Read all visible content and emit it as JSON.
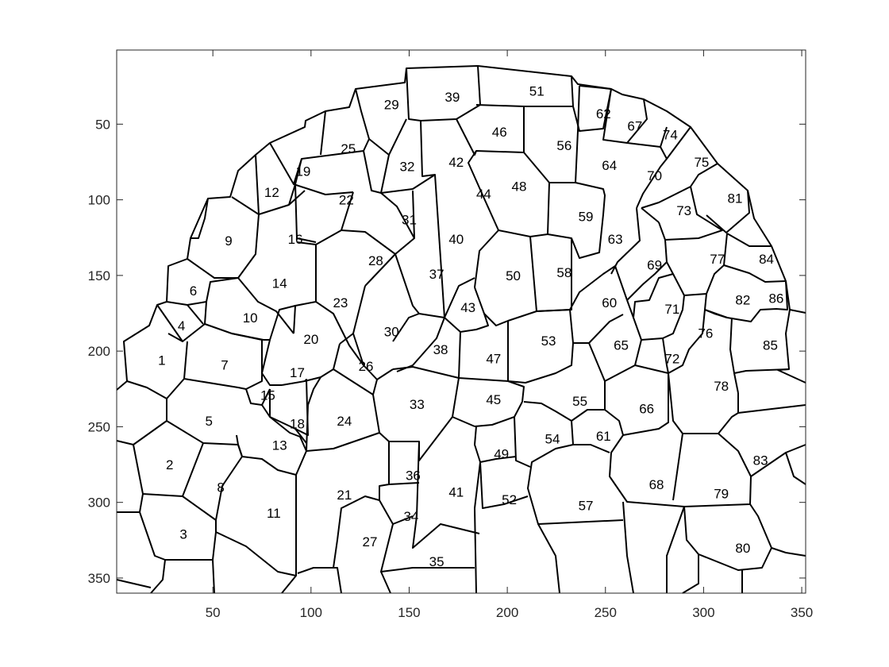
{
  "chart_data": {
    "type": "segmentation",
    "description_axes": "image-coordinate axes, y increases downward",
    "xlim": [
      1,
      352
    ],
    "ylim": [
      1,
      360
    ],
    "y_reversed": true,
    "xticks": [
      "50",
      "100",
      "150",
      "200",
      "250",
      "300",
      "350"
    ],
    "xtick_values": [
      50,
      100,
      150,
      200,
      250,
      300,
      350
    ],
    "yticks": [
      "50",
      "100",
      "150",
      "200",
      "250",
      "300",
      "350"
    ],
    "ytick_values": [
      50,
      100,
      150,
      200,
      250,
      300,
      350
    ],
    "grid": false,
    "cell_labels": [
      {
        "t": "1",
        "x": 24,
        "y": 206
      },
      {
        "t": "2",
        "x": 28,
        "y": 275
      },
      {
        "t": "3",
        "x": 35,
        "y": 321
      },
      {
        "t": "4",
        "x": 34,
        "y": 183
      },
      {
        "t": "5",
        "x": 48,
        "y": 246
      },
      {
        "t": "6",
        "x": 40,
        "y": 160
      },
      {
        "t": "7",
        "x": 56,
        "y": 209
      },
      {
        "t": "8",
        "x": 54,
        "y": 290
      },
      {
        "t": "9",
        "x": 58,
        "y": 127
      },
      {
        "t": "10",
        "x": 69,
        "y": 178
      },
      {
        "t": "11",
        "x": 81,
        "y": 307
      },
      {
        "t": "12",
        "x": 80,
        "y": 95
      },
      {
        "t": "13",
        "x": 84,
        "y": 262
      },
      {
        "t": "14",
        "x": 84,
        "y": 155
      },
      {
        "t": "15",
        "x": 78,
        "y": 229
      },
      {
        "t": "16",
        "x": 92,
        "y": 126
      },
      {
        "t": "17",
        "x": 93,
        "y": 214
      },
      {
        "t": "18",
        "x": 93,
        "y": 248
      },
      {
        "t": "19",
        "x": 96,
        "y": 81
      },
      {
        "t": "20",
        "x": 100,
        "y": 192
      },
      {
        "t": "21",
        "x": 117,
        "y": 295
      },
      {
        "t": "22",
        "x": 118,
        "y": 100
      },
      {
        "t": "23",
        "x": 115,
        "y": 168
      },
      {
        "t": "24",
        "x": 117,
        "y": 246
      },
      {
        "t": "25",
        "x": 119,
        "y": 66
      },
      {
        "t": "26",
        "x": 128,
        "y": 210
      },
      {
        "t": "27",
        "x": 130,
        "y": 326
      },
      {
        "t": "28",
        "x": 133,
        "y": 140
      },
      {
        "t": "29",
        "x": 141,
        "y": 37
      },
      {
        "t": "30",
        "x": 141,
        "y": 187
      },
      {
        "t": "31",
        "x": 150,
        "y": 113
      },
      {
        "t": "32",
        "x": 149,
        "y": 78
      },
      {
        "t": "33",
        "x": 154,
        "y": 235
      },
      {
        "t": "34",
        "x": 151,
        "y": 309
      },
      {
        "t": "35",
        "x": 164,
        "y": 339
      },
      {
        "t": "36",
        "x": 152,
        "y": 282
      },
      {
        "t": "37",
        "x": 164,
        "y": 149
      },
      {
        "t": "38",
        "x": 166,
        "y": 199
      },
      {
        "t": "39",
        "x": 172,
        "y": 32
      },
      {
        "t": "40",
        "x": 174,
        "y": 126
      },
      {
        "t": "41",
        "x": 174,
        "y": 293
      },
      {
        "t": "42",
        "x": 174,
        "y": 75
      },
      {
        "t": "43",
        "x": 180,
        "y": 171
      },
      {
        "t": "44",
        "x": 188,
        "y": 96
      },
      {
        "t": "45",
        "x": 193,
        "y": 232
      },
      {
        "t": "46",
        "x": 196,
        "y": 55
      },
      {
        "t": "47",
        "x": 193,
        "y": 205
      },
      {
        "t": "48",
        "x": 206,
        "y": 91
      },
      {
        "t": "49",
        "x": 197,
        "y": 268
      },
      {
        "t": "50",
        "x": 203,
        "y": 150
      },
      {
        "t": "51",
        "x": 215,
        "y": 28
      },
      {
        "t": "52",
        "x": 201,
        "y": 298
      },
      {
        "t": "53",
        "x": 221,
        "y": 193
      },
      {
        "t": "54",
        "x": 223,
        "y": 258
      },
      {
        "t": "55",
        "x": 237,
        "y": 233
      },
      {
        "t": "56",
        "x": 229,
        "y": 64
      },
      {
        "t": "57",
        "x": 240,
        "y": 302
      },
      {
        "t": "58",
        "x": 229,
        "y": 148
      },
      {
        "t": "59",
        "x": 240,
        "y": 111
      },
      {
        "t": "60",
        "x": 252,
        "y": 168
      },
      {
        "t": "61",
        "x": 249,
        "y": 256
      },
      {
        "t": "62",
        "x": 249,
        "y": 43
      },
      {
        "t": "63",
        "x": 255,
        "y": 126
      },
      {
        "t": "64",
        "x": 252,
        "y": 77
      },
      {
        "t": "65",
        "x": 258,
        "y": 196
      },
      {
        "t": "66",
        "x": 271,
        "y": 238
      },
      {
        "t": "67",
        "x": 265,
        "y": 51
      },
      {
        "t": "68",
        "x": 276,
        "y": 288
      },
      {
        "t": "69",
        "x": 275,
        "y": 143
      },
      {
        "t": "70",
        "x": 275,
        "y": 84
      },
      {
        "t": "71",
        "x": 284,
        "y": 172
      },
      {
        "t": "72",
        "x": 284,
        "y": 205
      },
      {
        "t": "73",
        "x": 290,
        "y": 107
      },
      {
        "t": "74",
        "x": 283,
        "y": 57
      },
      {
        "t": "75",
        "x": 299,
        "y": 75
      },
      {
        "t": "76",
        "x": 301,
        "y": 188
      },
      {
        "t": "77",
        "x": 307,
        "y": 139
      },
      {
        "t": "78",
        "x": 309,
        "y": 223
      },
      {
        "t": "79",
        "x": 309,
        "y": 294
      },
      {
        "t": "80",
        "x": 320,
        "y": 330
      },
      {
        "t": "81",
        "x": 316,
        "y": 99
      },
      {
        "t": "82",
        "x": 320,
        "y": 166
      },
      {
        "t": "83",
        "x": 329,
        "y": 272
      },
      {
        "t": "84",
        "x": 332,
        "y": 139
      },
      {
        "t": "85",
        "x": 334,
        "y": 196
      },
      {
        "t": "86",
        "x": 337,
        "y": 165
      }
    ]
  }
}
